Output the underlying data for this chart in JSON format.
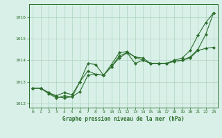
{
  "title": "Graphe pression niveau de la mer (hPa)",
  "background_color": "#d8f0e8",
  "grid_color": "#b0d4c0",
  "line_color": "#2d6e2d",
  "xlim": [
    -0.5,
    23.5
  ],
  "ylim": [
    1011.8,
    1016.6
  ],
  "yticks": [
    1012,
    1013,
    1014,
    1015,
    1016
  ],
  "xticks": [
    0,
    1,
    2,
    3,
    4,
    5,
    6,
    7,
    8,
    9,
    10,
    11,
    12,
    13,
    14,
    15,
    16,
    17,
    18,
    19,
    20,
    21,
    22,
    23
  ],
  "series": [
    [
      1012.7,
      1012.7,
      1012.5,
      1012.35,
      1012.5,
      1012.4,
      1013.0,
      1013.85,
      1013.8,
      1013.3,
      1013.8,
      1014.35,
      1014.4,
      1014.15,
      1014.1,
      1013.85,
      1013.85,
      1013.85,
      1014.0,
      1014.1,
      1014.45,
      1015.15,
      1015.75,
      1016.2
    ],
    [
      1012.7,
      1012.7,
      1012.5,
      1012.3,
      1012.25,
      1012.3,
      1013.0,
      1013.5,
      1013.35,
      1013.3,
      1013.7,
      1014.2,
      1014.35,
      1014.15,
      1014.0,
      1013.85,
      1013.85,
      1013.85,
      1013.95,
      1014.0,
      1014.1,
      1014.45,
      1014.55,
      1014.6
    ],
    [
      1012.7,
      1012.7,
      1012.45,
      1012.25,
      1012.35,
      1012.3,
      1012.55,
      1013.3,
      1013.35,
      1013.3,
      1013.7,
      1014.1,
      1014.35,
      1013.85,
      1014.0,
      1013.85,
      1013.85,
      1013.85,
      1013.95,
      1014.0,
      1014.15,
      1014.5,
      1015.2,
      1016.2
    ]
  ]
}
